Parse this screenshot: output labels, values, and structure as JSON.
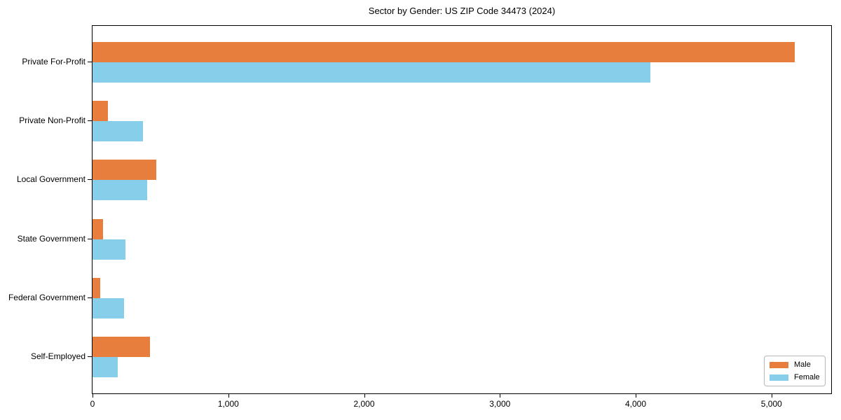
{
  "title": "Sector by Gender: US ZIP Code 34473 (2024)",
  "chart_data": {
    "type": "bar",
    "orientation": "horizontal",
    "title": "Sector by Gender: US ZIP Code 34473 (2024)",
    "xlabel": "",
    "ylabel": "",
    "categories": [
      "Private For-Profit",
      "Private Non-Profit",
      "Local Government",
      "State Government",
      "Federal Government",
      "Self-Employed"
    ],
    "series": [
      {
        "name": "Male",
        "color": "#e87e3e",
        "values": [
          5170,
          113,
          470,
          77,
          55,
          425
        ]
      },
      {
        "name": "Female",
        "color": "#87ceeb",
        "values": [
          4110,
          369,
          403,
          244,
          232,
          188
        ]
      }
    ],
    "xlim": [
      0,
      5440
    ],
    "xticks": [
      {
        "value": 0,
        "label": "0"
      },
      {
        "value": 1000,
        "label": "1,000"
      },
      {
        "value": 2000,
        "label": "2,000"
      },
      {
        "value": 3000,
        "label": "3,000"
      },
      {
        "value": 4000,
        "label": "4,000"
      },
      {
        "value": 5000,
        "label": "5,000"
      }
    ],
    "grid": false,
    "legend_position": "lower right"
  }
}
